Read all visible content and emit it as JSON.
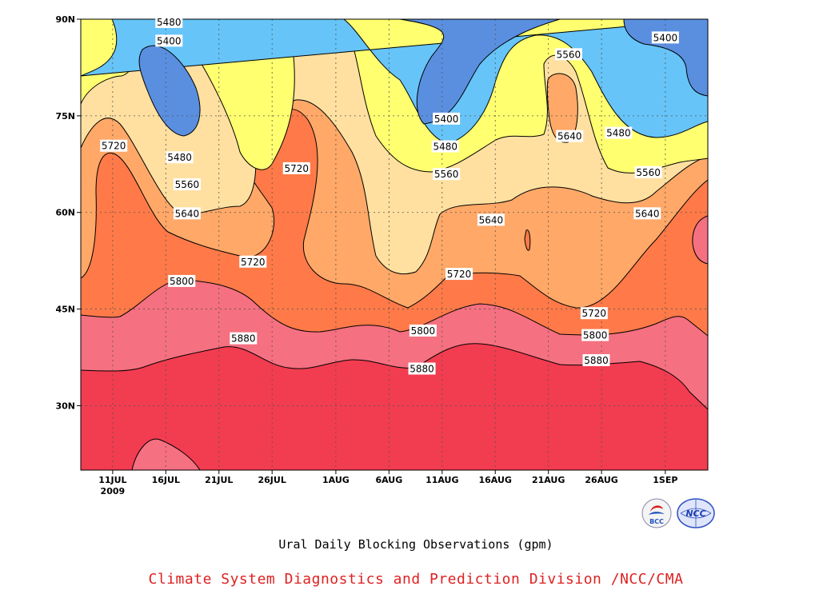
{
  "chart_data": {
    "type": "heatmap",
    "subtype": "filled-contour",
    "title": "Ural Daily Blocking Observations (gpm)",
    "credit": "Climate System Diagnostics and Prediction Division /NCC/CMA",
    "xlabel": "",
    "ylabel": "",
    "x_ticks": [
      {
        "label": "11JUL",
        "day": 10
      },
      {
        "label": "16JUL",
        "day": 15
      },
      {
        "label": "21JUL",
        "day": 20
      },
      {
        "label": "26JUL",
        "day": 25
      },
      {
        "label": "1AUG",
        "day": 31
      },
      {
        "label": "6AUG",
        "day": 36
      },
      {
        "label": "11AUG",
        "day": 41
      },
      {
        "label": "16AUG",
        "day": 46
      },
      {
        "label": "21AUG",
        "day": 51
      },
      {
        "label": "26AUG",
        "day": 56
      },
      {
        "label": "1SEP",
        "day": 62
      }
    ],
    "x_year_label": "2009",
    "xlim": [
      7,
      66
    ],
    "y_ticks": [
      {
        "label": "30N",
        "lat": 30
      },
      {
        "label": "45N",
        "lat": 45
      },
      {
        "label": "60N",
        "lat": 60
      },
      {
        "label": "75N",
        "lat": 75
      },
      {
        "label": "90N",
        "lat": 90
      }
    ],
    "ylim": [
      20,
      90
    ],
    "grid": true,
    "contour_levels": [
      5400,
      5480,
      5560,
      5640,
      5720,
      5800,
      5880
    ],
    "band_colors": {
      "below_5400": "#5a8fe0",
      "5400_5480": "#66c4f8",
      "5480_5560": "#ffff70",
      "5560_5640": "#ffe0a0",
      "5640_5720": "#ffa868",
      "5720_5800": "#ff7a48",
      "5800_5880": "#f57080",
      "above_5880": "#f23c50"
    },
    "contour_labels": [
      {
        "text": "5400",
        "day": 15.3,
        "lat": 86.6
      },
      {
        "text": "5480",
        "day": 15.3,
        "lat": 89.5
      },
      {
        "text": "5480",
        "day": 16.3,
        "lat": 68.5
      },
      {
        "text": "5560",
        "day": 17.0,
        "lat": 64.3
      },
      {
        "text": "5640",
        "day": 17.0,
        "lat": 59.8
      },
      {
        "text": "5720",
        "day": 10.1,
        "lat": 70.3
      },
      {
        "text": "5720",
        "day": 23.2,
        "lat": 52.3
      },
      {
        "text": "5720",
        "day": 27.3,
        "lat": 66.8
      },
      {
        "text": "5800",
        "day": 16.5,
        "lat": 49.3
      },
      {
        "text": "5880",
        "day": 22.3,
        "lat": 40.4
      },
      {
        "text": "5400",
        "day": 41.4,
        "lat": 74.5
      },
      {
        "text": "5480",
        "day": 41.3,
        "lat": 70.2
      },
      {
        "text": "5560",
        "day": 41.4,
        "lat": 65.9
      },
      {
        "text": "5640",
        "day": 45.6,
        "lat": 58.8
      },
      {
        "text": "5720",
        "day": 42.6,
        "lat": 50.4
      },
      {
        "text": "5800",
        "day": 39.2,
        "lat": 41.6
      },
      {
        "text": "5880",
        "day": 39.1,
        "lat": 35.7
      },
      {
        "text": "5560",
        "day": 52.9,
        "lat": 84.5
      },
      {
        "text": "5640",
        "day": 53.0,
        "lat": 71.8
      },
      {
        "text": "5480",
        "day": 57.6,
        "lat": 72.3
      },
      {
        "text": "5560",
        "day": 60.4,
        "lat": 66.2
      },
      {
        "text": "5640",
        "day": 60.3,
        "lat": 59.8
      },
      {
        "text": "5720",
        "day": 55.3,
        "lat": 44.3
      },
      {
        "text": "5800",
        "day": 55.4,
        "lat": 40.9
      },
      {
        "text": "5880",
        "day": 55.5,
        "lat": 37.0
      },
      {
        "text": "5400",
        "day": 62.0,
        "lat": 87.1
      }
    ]
  },
  "logos": {
    "left": {
      "text": "BCC",
      "name": "bcc-logo"
    },
    "right": {
      "text": "NCC",
      "name": "ncc-logo"
    }
  }
}
